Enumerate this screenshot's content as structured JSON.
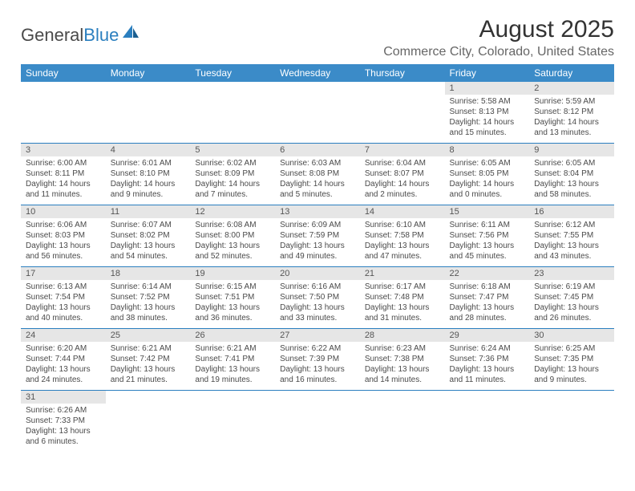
{
  "logo": {
    "text1": "General",
    "text2": "Blue"
  },
  "title": "August 2025",
  "subtitle": "Commerce City, Colorado, United States",
  "colors": {
    "header_bg": "#3b8bc8",
    "header_fg": "#ffffff",
    "daynum_bg": "#e6e6e6",
    "cell_border": "#2b7fbf",
    "text": "#4a4a4a"
  },
  "day_headers": [
    "Sunday",
    "Monday",
    "Tuesday",
    "Wednesday",
    "Thursday",
    "Friday",
    "Saturday"
  ],
  "weeks": [
    [
      null,
      null,
      null,
      null,
      null,
      {
        "n": "1",
        "sr": "Sunrise: 5:58 AM",
        "ss": "Sunset: 8:13 PM",
        "dl": "Daylight: 14 hours and 15 minutes."
      },
      {
        "n": "2",
        "sr": "Sunrise: 5:59 AM",
        "ss": "Sunset: 8:12 PM",
        "dl": "Daylight: 14 hours and 13 minutes."
      }
    ],
    [
      {
        "n": "3",
        "sr": "Sunrise: 6:00 AM",
        "ss": "Sunset: 8:11 PM",
        "dl": "Daylight: 14 hours and 11 minutes."
      },
      {
        "n": "4",
        "sr": "Sunrise: 6:01 AM",
        "ss": "Sunset: 8:10 PM",
        "dl": "Daylight: 14 hours and 9 minutes."
      },
      {
        "n": "5",
        "sr": "Sunrise: 6:02 AM",
        "ss": "Sunset: 8:09 PM",
        "dl": "Daylight: 14 hours and 7 minutes."
      },
      {
        "n": "6",
        "sr": "Sunrise: 6:03 AM",
        "ss": "Sunset: 8:08 PM",
        "dl": "Daylight: 14 hours and 5 minutes."
      },
      {
        "n": "7",
        "sr": "Sunrise: 6:04 AM",
        "ss": "Sunset: 8:07 PM",
        "dl": "Daylight: 14 hours and 2 minutes."
      },
      {
        "n": "8",
        "sr": "Sunrise: 6:05 AM",
        "ss": "Sunset: 8:05 PM",
        "dl": "Daylight: 14 hours and 0 minutes."
      },
      {
        "n": "9",
        "sr": "Sunrise: 6:05 AM",
        "ss": "Sunset: 8:04 PM",
        "dl": "Daylight: 13 hours and 58 minutes."
      }
    ],
    [
      {
        "n": "10",
        "sr": "Sunrise: 6:06 AM",
        "ss": "Sunset: 8:03 PM",
        "dl": "Daylight: 13 hours and 56 minutes."
      },
      {
        "n": "11",
        "sr": "Sunrise: 6:07 AM",
        "ss": "Sunset: 8:02 PM",
        "dl": "Daylight: 13 hours and 54 minutes."
      },
      {
        "n": "12",
        "sr": "Sunrise: 6:08 AM",
        "ss": "Sunset: 8:00 PM",
        "dl": "Daylight: 13 hours and 52 minutes."
      },
      {
        "n": "13",
        "sr": "Sunrise: 6:09 AM",
        "ss": "Sunset: 7:59 PM",
        "dl": "Daylight: 13 hours and 49 minutes."
      },
      {
        "n": "14",
        "sr": "Sunrise: 6:10 AM",
        "ss": "Sunset: 7:58 PM",
        "dl": "Daylight: 13 hours and 47 minutes."
      },
      {
        "n": "15",
        "sr": "Sunrise: 6:11 AM",
        "ss": "Sunset: 7:56 PM",
        "dl": "Daylight: 13 hours and 45 minutes."
      },
      {
        "n": "16",
        "sr": "Sunrise: 6:12 AM",
        "ss": "Sunset: 7:55 PM",
        "dl": "Daylight: 13 hours and 43 minutes."
      }
    ],
    [
      {
        "n": "17",
        "sr": "Sunrise: 6:13 AM",
        "ss": "Sunset: 7:54 PM",
        "dl": "Daylight: 13 hours and 40 minutes."
      },
      {
        "n": "18",
        "sr": "Sunrise: 6:14 AM",
        "ss": "Sunset: 7:52 PM",
        "dl": "Daylight: 13 hours and 38 minutes."
      },
      {
        "n": "19",
        "sr": "Sunrise: 6:15 AM",
        "ss": "Sunset: 7:51 PM",
        "dl": "Daylight: 13 hours and 36 minutes."
      },
      {
        "n": "20",
        "sr": "Sunrise: 6:16 AM",
        "ss": "Sunset: 7:50 PM",
        "dl": "Daylight: 13 hours and 33 minutes."
      },
      {
        "n": "21",
        "sr": "Sunrise: 6:17 AM",
        "ss": "Sunset: 7:48 PM",
        "dl": "Daylight: 13 hours and 31 minutes."
      },
      {
        "n": "22",
        "sr": "Sunrise: 6:18 AM",
        "ss": "Sunset: 7:47 PM",
        "dl": "Daylight: 13 hours and 28 minutes."
      },
      {
        "n": "23",
        "sr": "Sunrise: 6:19 AM",
        "ss": "Sunset: 7:45 PM",
        "dl": "Daylight: 13 hours and 26 minutes."
      }
    ],
    [
      {
        "n": "24",
        "sr": "Sunrise: 6:20 AM",
        "ss": "Sunset: 7:44 PM",
        "dl": "Daylight: 13 hours and 24 minutes."
      },
      {
        "n": "25",
        "sr": "Sunrise: 6:21 AM",
        "ss": "Sunset: 7:42 PM",
        "dl": "Daylight: 13 hours and 21 minutes."
      },
      {
        "n": "26",
        "sr": "Sunrise: 6:21 AM",
        "ss": "Sunset: 7:41 PM",
        "dl": "Daylight: 13 hours and 19 minutes."
      },
      {
        "n": "27",
        "sr": "Sunrise: 6:22 AM",
        "ss": "Sunset: 7:39 PM",
        "dl": "Daylight: 13 hours and 16 minutes."
      },
      {
        "n": "28",
        "sr": "Sunrise: 6:23 AM",
        "ss": "Sunset: 7:38 PM",
        "dl": "Daylight: 13 hours and 14 minutes."
      },
      {
        "n": "29",
        "sr": "Sunrise: 6:24 AM",
        "ss": "Sunset: 7:36 PM",
        "dl": "Daylight: 13 hours and 11 minutes."
      },
      {
        "n": "30",
        "sr": "Sunrise: 6:25 AM",
        "ss": "Sunset: 7:35 PM",
        "dl": "Daylight: 13 hours and 9 minutes."
      }
    ],
    [
      {
        "n": "31",
        "sr": "Sunrise: 6:26 AM",
        "ss": "Sunset: 7:33 PM",
        "dl": "Daylight: 13 hours and 6 minutes."
      },
      null,
      null,
      null,
      null,
      null,
      null
    ]
  ]
}
